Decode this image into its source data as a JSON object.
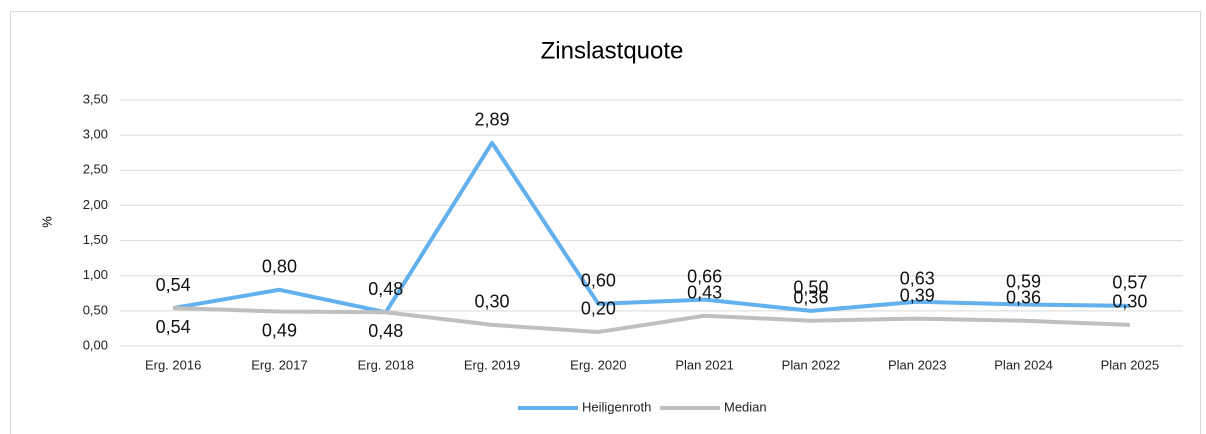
{
  "chart_data": {
    "type": "line",
    "title": "Zinslastquote",
    "ylabel": "%",
    "categories": [
      "Erg. 2016",
      "Erg. 2017",
      "Erg. 2018",
      "Erg. 2019",
      "Erg. 2020",
      "Plan 2021",
      "Plan 2022",
      "Plan 2023",
      "Plan 2024",
      "Plan 2025"
    ],
    "series": [
      {
        "name": "Heiligenroth",
        "color": "#62b0ee",
        "values": [
          0.54,
          0.8,
          0.48,
          2.89,
          0.6,
          0.66,
          0.5,
          0.63,
          0.59,
          0.57
        ],
        "value_labels": [
          "0,54",
          "0,80",
          "0,48",
          "2,89",
          "0,60",
          "0,66",
          "0,50",
          "0,63",
          "0,59",
          "0,57"
        ]
      },
      {
        "name": "Median",
        "color": "#bfbfbf",
        "values": [
          0.54,
          0.49,
          0.48,
          0.3,
          0.2,
          0.43,
          0.36,
          0.39,
          0.36,
          0.3
        ],
        "value_labels": [
          "0,54",
          "0,49",
          "0,48",
          "0,30",
          "0,20",
          "0,43",
          "0,36",
          "0,39",
          "0,36",
          "0,30"
        ]
      }
    ],
    "ylim": [
      0,
      3.5
    ],
    "yticks": [
      {
        "value": 0,
        "label": "0,00"
      },
      {
        "value": 0.5,
        "label": "0,50"
      },
      {
        "value": 1,
        "label": "1,00"
      },
      {
        "value": 1.5,
        "label": "1,50"
      },
      {
        "value": 2,
        "label": "2,00"
      },
      {
        "value": 2.5,
        "label": "2,50"
      },
      {
        "value": 3,
        "label": "3,00"
      },
      {
        "value": 3.5,
        "label": "3,50"
      }
    ],
    "grid": true,
    "legend": "bottom"
  }
}
